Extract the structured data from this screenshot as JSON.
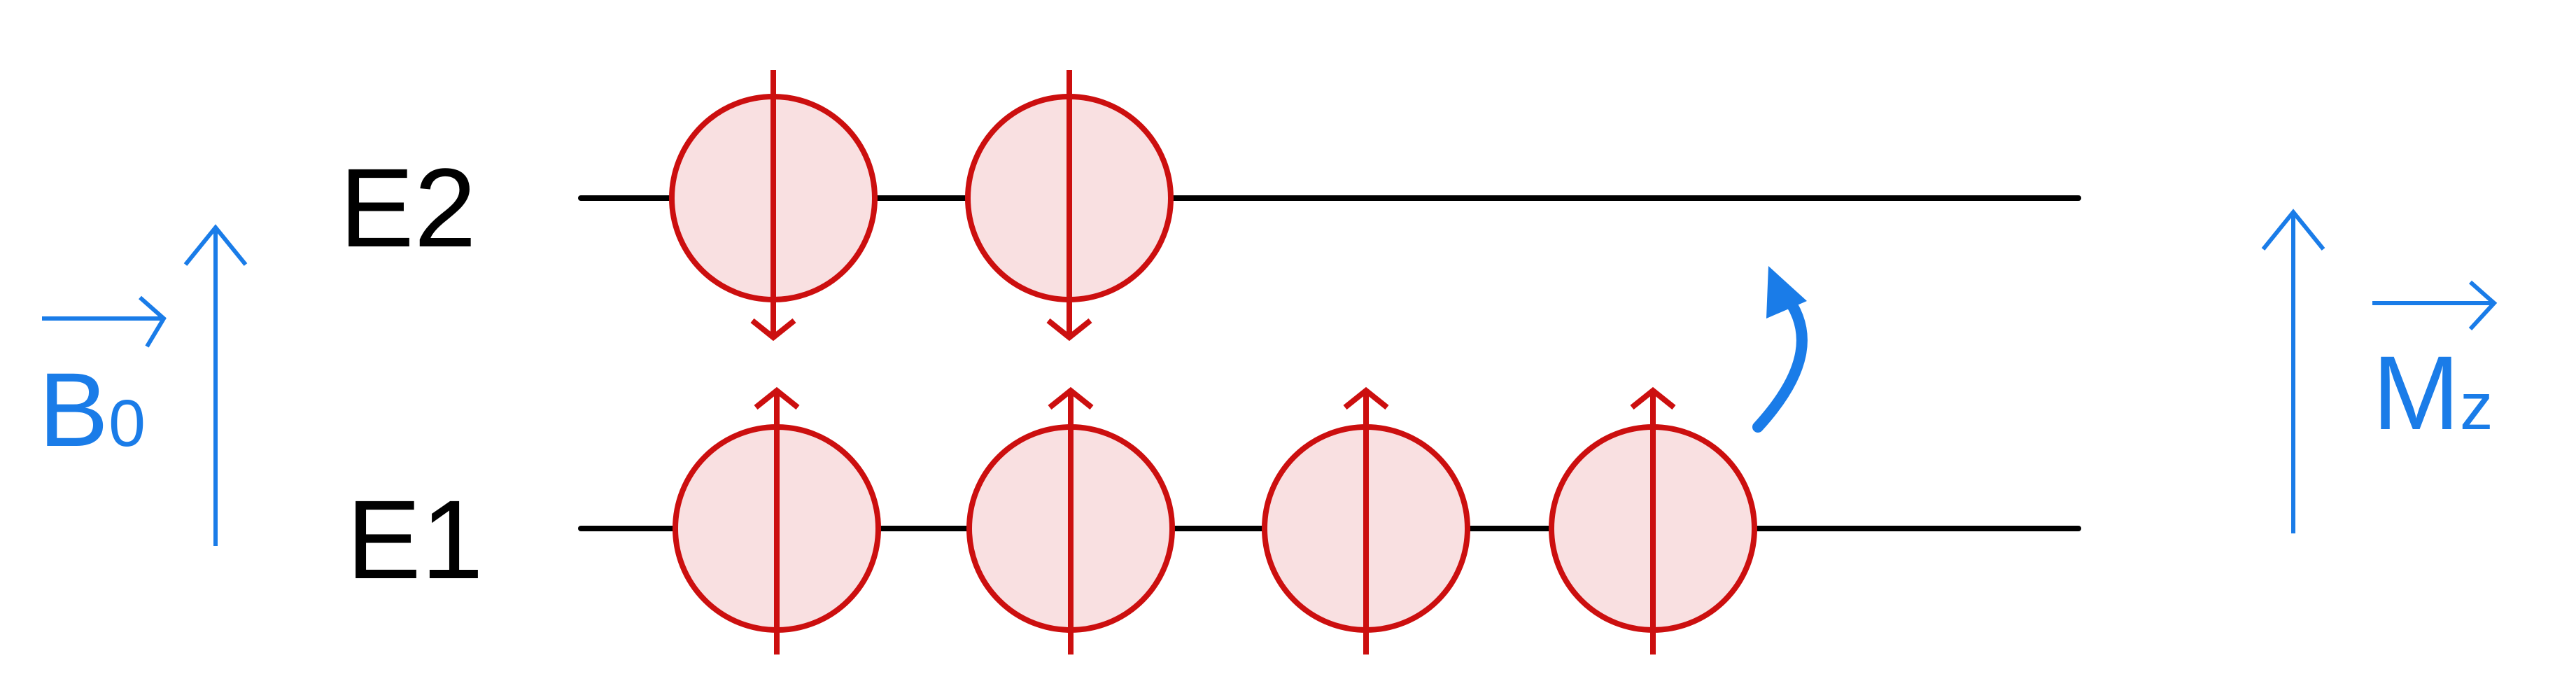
{
  "labels": {
    "upper_level": "E2",
    "lower_level": "E1",
    "field": "B",
    "field_subscript": "0",
    "magnetization": "M",
    "magnetization_subscript": "z"
  },
  "levels": {
    "upper": {
      "spins": [
        "down",
        "down"
      ]
    },
    "lower": {
      "spins": [
        "up",
        "up",
        "up",
        "up"
      ]
    }
  },
  "colors": {
    "text": "#000000",
    "level_line": "#000000",
    "spin_stroke": "#cc0f0f",
    "spin_fill": "#f9e0e1",
    "accent": "#1a7ce8"
  }
}
